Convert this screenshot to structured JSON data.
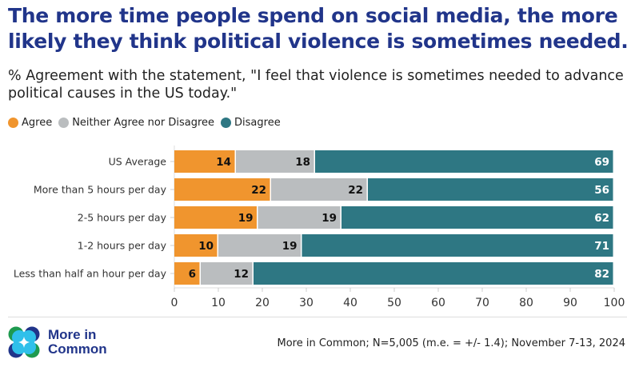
{
  "title": "The more time people spend on social media, the more likely they think political violence is sometimes needed.",
  "subtitle": "% Agreement with the statement, \"I feel that violence is sometimes needed to advance political causes in the US today.\"",
  "source": "More in Common; N=5,005 (m.e. = +/- 1.4); November 7-13, 2024",
  "logo": {
    "line1": "More in",
    "line2": "Common"
  },
  "chart_data": {
    "type": "bar",
    "orientation": "horizontal",
    "stacked": true,
    "title": "The more time people spend on social media, the more likely they think political violence is sometimes needed.",
    "categories": [
      "US Average",
      "More than 5 hours per day",
      "2-5 hours per day",
      "1-2 hours per day",
      "Less than half an hour per day"
    ],
    "series": [
      {
        "name": "Agree",
        "color": "#f0952e",
        "values": [
          14,
          22,
          19,
          10,
          6
        ]
      },
      {
        "name": "Neither Agree nor Disagree",
        "color": "#babdbf",
        "values": [
          18,
          22,
          19,
          19,
          12
        ]
      },
      {
        "name": "Disagree",
        "color": "#2e7783",
        "values": [
          69,
          56,
          62,
          71,
          82
        ]
      }
    ],
    "xlim": [
      0,
      100
    ],
    "xticks": [
      "0",
      "10",
      "20",
      "30",
      "40",
      "50",
      "60",
      "70",
      "80",
      "90",
      "100"
    ],
    "legend": "top-left",
    "grid": false
  }
}
